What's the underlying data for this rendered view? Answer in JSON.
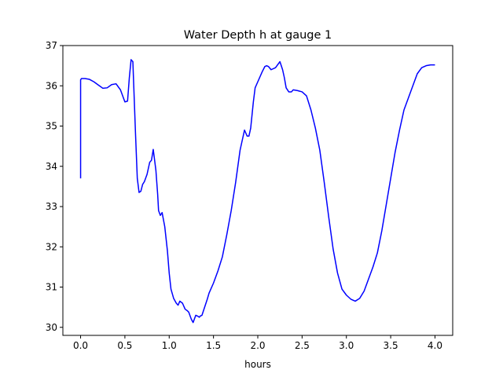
{
  "chart_data": {
    "type": "line",
    "title": "Water Depth h at gauge 1",
    "xlabel": "hours",
    "ylabel": "",
    "xlim": [
      -0.2,
      4.2
    ],
    "ylim": [
      29.8,
      37.0
    ],
    "xticks": [
      0.0,
      0.5,
      1.0,
      1.5,
      2.0,
      2.5,
      3.0,
      3.5,
      4.0
    ],
    "xtick_labels": [
      "0.0",
      "0.5",
      "1.0",
      "1.5",
      "2.0",
      "2.5",
      "3.0",
      "3.5",
      "4.0"
    ],
    "yticks": [
      30,
      31,
      32,
      33,
      34,
      35,
      36,
      37
    ],
    "ytick_labels": [
      "30",
      "31",
      "32",
      "33",
      "34",
      "35",
      "36",
      "37"
    ],
    "grid": false,
    "series": [
      {
        "color": "#0000ff",
        "x": [
          0.0,
          0.0,
          0.01,
          0.05,
          0.1,
          0.15,
          0.2,
          0.25,
          0.3,
          0.35,
          0.4,
          0.45,
          0.5,
          0.53,
          0.55,
          0.57,
          0.59,
          0.6,
          0.62,
          0.64,
          0.66,
          0.68,
          0.7,
          0.72,
          0.75,
          0.78,
          0.8,
          0.82,
          0.85,
          0.87,
          0.88,
          0.9,
          0.92,
          0.95,
          0.98,
          1.0,
          1.02,
          1.05,
          1.08,
          1.1,
          1.12,
          1.15,
          1.18,
          1.2,
          1.22,
          1.25,
          1.27,
          1.3,
          1.32,
          1.34,
          1.35,
          1.37,
          1.4,
          1.43,
          1.45,
          1.5,
          1.55,
          1.6,
          1.65,
          1.7,
          1.75,
          1.8,
          1.85,
          1.88,
          1.9,
          1.92,
          1.95,
          1.97,
          2.0,
          2.05,
          2.08,
          2.1,
          2.12,
          2.15,
          2.2,
          2.25,
          2.28,
          2.3,
          2.32,
          2.35,
          2.38,
          2.4,
          2.45,
          2.5,
          2.55,
          2.6,
          2.65,
          2.7,
          2.75,
          2.8,
          2.85,
          2.9,
          2.95,
          3.0,
          3.05,
          3.1,
          3.15,
          3.2,
          3.25,
          3.3,
          3.35,
          3.4,
          3.45,
          3.5,
          3.55,
          3.6,
          3.65,
          3.7,
          3.75,
          3.8,
          3.85,
          3.9,
          3.95,
          4.0
        ],
        "y": [
          33.7,
          36.15,
          36.18,
          36.18,
          36.16,
          36.1,
          36.02,
          35.94,
          35.95,
          36.03,
          36.05,
          35.9,
          35.6,
          35.62,
          36.2,
          36.65,
          36.6,
          36.0,
          34.8,
          33.7,
          33.35,
          33.38,
          33.55,
          33.62,
          33.8,
          34.1,
          34.15,
          34.42,
          33.9,
          33.3,
          32.9,
          32.78,
          32.85,
          32.5,
          31.9,
          31.35,
          30.95,
          30.72,
          30.6,
          30.55,
          30.65,
          30.6,
          30.45,
          30.42,
          30.38,
          30.2,
          30.12,
          30.3,
          30.28,
          30.25,
          30.28,
          30.3,
          30.5,
          30.7,
          30.85,
          31.1,
          31.4,
          31.75,
          32.3,
          32.9,
          33.6,
          34.4,
          34.9,
          34.75,
          34.75,
          34.95,
          35.6,
          35.95,
          36.1,
          36.35,
          36.48,
          36.5,
          36.48,
          36.4,
          36.45,
          36.6,
          36.4,
          36.2,
          35.95,
          35.85,
          35.85,
          35.9,
          35.88,
          35.85,
          35.75,
          35.4,
          34.95,
          34.4,
          33.6,
          32.75,
          31.95,
          31.35,
          30.95,
          30.8,
          30.7,
          30.65,
          30.72,
          30.9,
          31.2,
          31.5,
          31.85,
          32.4,
          33.05,
          33.7,
          34.35,
          34.9,
          35.4,
          35.7,
          36.0,
          36.3,
          36.45,
          36.5,
          36.52,
          36.52
        ]
      }
    ]
  }
}
